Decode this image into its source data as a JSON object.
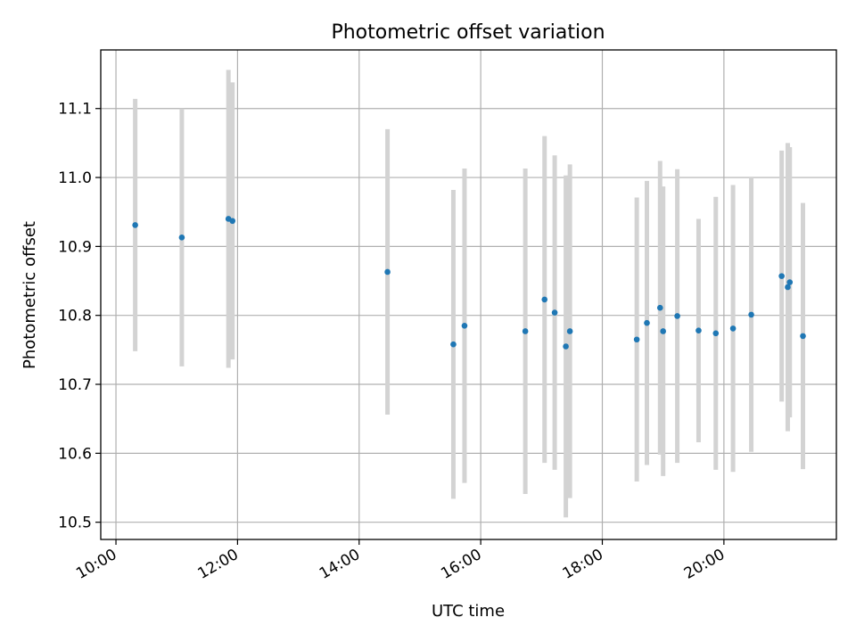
{
  "chart_data": {
    "type": "scatter",
    "title": "Photometric offset variation",
    "xlabel": "UTC time",
    "ylabel": "Photometric offset",
    "x_ticks": [
      "10:00",
      "12:00",
      "14:00",
      "16:00",
      "18:00",
      "20:00"
    ],
    "x_tick_hours": [
      10,
      12,
      14,
      16,
      18,
      20
    ],
    "xlim_hours": [
      9.75,
      21.85
    ],
    "y_ticks": [
      10.5,
      10.6,
      10.7,
      10.8,
      10.9,
      11.0,
      11.1
    ],
    "y_tick_labels": [
      "10.5",
      "10.6",
      "10.7",
      "10.8",
      "10.9",
      "11.0",
      "11.1"
    ],
    "ylim": [
      10.475,
      11.185
    ],
    "grid": true,
    "colors": {
      "marker": "#1f77b4",
      "errorbar": "#d3d3d3"
    },
    "points": [
      {
        "time": "10:19",
        "y": 10.931,
        "err": 0.183
      },
      {
        "time": "11:05",
        "y": 10.913,
        "err": 0.187
      },
      {
        "time": "11:51",
        "y": 10.94,
        "err": 0.216
      },
      {
        "time": "11:55",
        "y": 10.937,
        "err": 0.201
      },
      {
        "time": "14:28",
        "y": 10.863,
        "err": 0.207
      },
      {
        "time": "15:33",
        "y": 10.758,
        "err": 0.224
      },
      {
        "time": "15:44",
        "y": 10.785,
        "err": 0.228
      },
      {
        "time": "16:44",
        "y": 10.777,
        "err": 0.236
      },
      {
        "time": "17:03",
        "y": 10.823,
        "err": 0.237
      },
      {
        "time": "17:13",
        "y": 10.804,
        "err": 0.228
      },
      {
        "time": "17:24",
        "y": 10.755,
        "err": 0.248
      },
      {
        "time": "17:28",
        "y": 10.777,
        "err": 0.242
      },
      {
        "time": "18:34",
        "y": 10.765,
        "err": 0.206
      },
      {
        "time": "18:44",
        "y": 10.789,
        "err": 0.206
      },
      {
        "time": "18:57",
        "y": 10.811,
        "err": 0.213
      },
      {
        "time": "19:00",
        "y": 10.777,
        "err": 0.21
      },
      {
        "time": "19:14",
        "y": 10.799,
        "err": 0.213
      },
      {
        "time": "19:35",
        "y": 10.778,
        "err": 0.162
      },
      {
        "time": "19:52",
        "y": 10.774,
        "err": 0.198
      },
      {
        "time": "20:09",
        "y": 10.781,
        "err": 0.208
      },
      {
        "time": "20:27",
        "y": 10.801,
        "err": 0.199
      },
      {
        "time": "20:57",
        "y": 10.857,
        "err": 0.182
      },
      {
        "time": "21:03",
        "y": 10.841,
        "err": 0.209
      },
      {
        "time": "21:05",
        "y": 10.848,
        "err": 0.196
      },
      {
        "time": "21:18",
        "y": 10.77,
        "err": 0.193
      }
    ]
  }
}
